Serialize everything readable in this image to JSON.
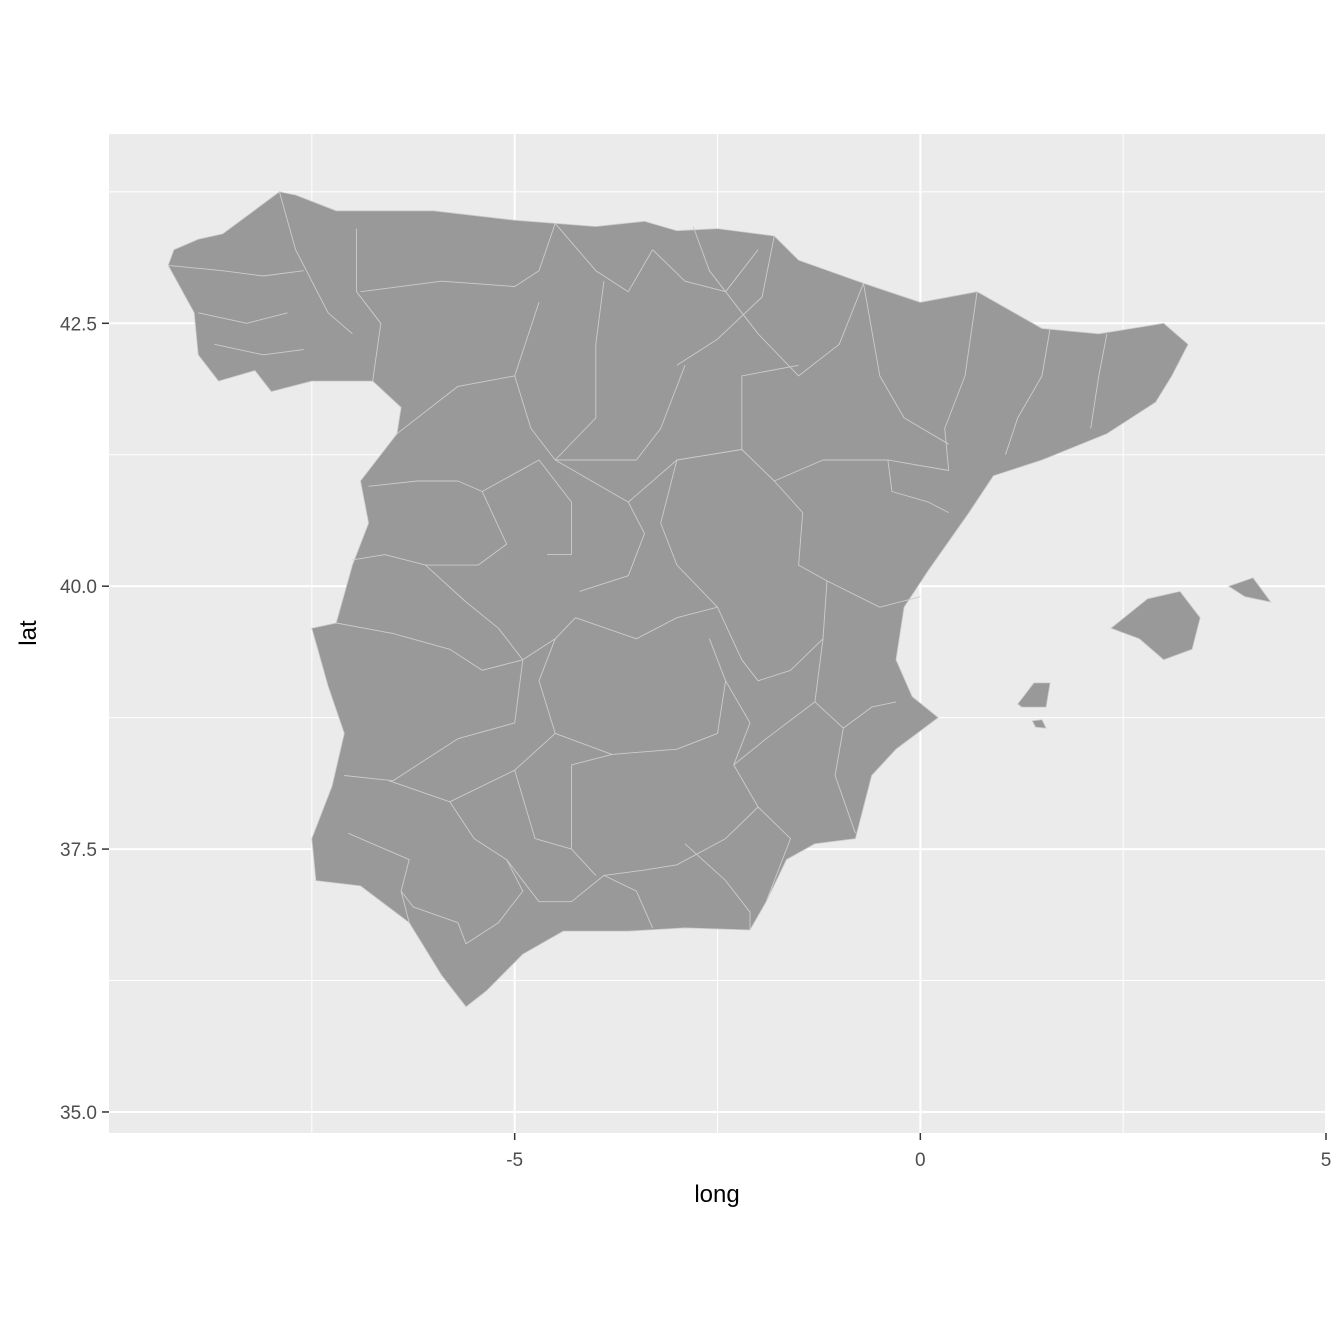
{
  "chart_data": {
    "type": "map",
    "title": "",
    "subject": "Spain provinces",
    "xlabel": "long",
    "ylabel": "lat",
    "xlim": [
      -10,
      5
    ],
    "ylim": [
      34.8,
      44.3
    ],
    "x_ticks": [
      {
        "value": -5,
        "label": "-5"
      },
      {
        "value": 0,
        "label": "0"
      },
      {
        "value": 5,
        "label": "5"
      }
    ],
    "y_ticks": [
      {
        "value": 35.0,
        "label": "35.0"
      },
      {
        "value": 37.5,
        "label": "37.5"
      },
      {
        "value": 40.0,
        "label": "40.0"
      },
      {
        "value": 42.5,
        "label": "42.5"
      }
    ],
    "x_minor_ticks": [
      -7.5,
      -2.5,
      2.5
    ],
    "y_minor_ticks": [
      36.25,
      38.75,
      41.25,
      43.75
    ],
    "colors": {
      "panel_background": "#ebebeb",
      "grid": "#ffffff",
      "region_fill": "#999999",
      "region_border": "#cccccc"
    },
    "mainland": [
      [
        -9.27,
        43.05
      ],
      [
        -9.2,
        43.2
      ],
      [
        -8.9,
        43.3
      ],
      [
        -8.6,
        43.35
      ],
      [
        -8.25,
        43.55
      ],
      [
        -7.9,
        43.75
      ],
      [
        -7.7,
        43.72
      ],
      [
        -7.2,
        43.57
      ],
      [
        -6.0,
        43.57
      ],
      [
        -5.0,
        43.48
      ],
      [
        -4.0,
        43.42
      ],
      [
        -3.4,
        43.47
      ],
      [
        -3.0,
        43.38
      ],
      [
        -2.5,
        43.4
      ],
      [
        -1.8,
        43.33
      ],
      [
        -1.5,
        43.1
      ],
      [
        -0.7,
        42.88
      ],
      [
        0.0,
        42.7
      ],
      [
        0.7,
        42.8
      ],
      [
        1.5,
        42.45
      ],
      [
        2.2,
        42.4
      ],
      [
        3.0,
        42.5
      ],
      [
        3.3,
        42.3
      ],
      [
        3.1,
        42.0
      ],
      [
        2.9,
        41.75
      ],
      [
        2.3,
        41.45
      ],
      [
        1.5,
        41.2
      ],
      [
        0.9,
        41.05
      ],
      [
        0.6,
        40.7
      ],
      [
        0.1,
        40.15
      ],
      [
        -0.2,
        39.8
      ],
      [
        -0.3,
        39.3
      ],
      [
        -0.1,
        38.95
      ],
      [
        0.22,
        38.75
      ],
      [
        -0.3,
        38.45
      ],
      [
        -0.6,
        38.2
      ],
      [
        -0.8,
        37.6
      ],
      [
        -1.3,
        37.55
      ],
      [
        -1.65,
        37.4
      ],
      [
        -1.9,
        37.0
      ],
      [
        -2.1,
        36.73
      ],
      [
        -2.9,
        36.75
      ],
      [
        -3.6,
        36.72
      ],
      [
        -4.4,
        36.72
      ],
      [
        -4.9,
        36.5
      ],
      [
        -5.35,
        36.15
      ],
      [
        -5.6,
        36.0
      ],
      [
        -5.9,
        36.3
      ],
      [
        -6.3,
        36.8
      ],
      [
        -6.9,
        37.15
      ],
      [
        -7.45,
        37.2
      ],
      [
        -7.5,
        37.6
      ],
      [
        -7.25,
        38.1
      ],
      [
        -7.1,
        38.6
      ],
      [
        -7.3,
        39.05
      ],
      [
        -7.5,
        39.6
      ],
      [
        -7.2,
        39.65
      ],
      [
        -7.0,
        40.2
      ],
      [
        -6.8,
        40.6
      ],
      [
        -6.9,
        41.0
      ],
      [
        -6.45,
        41.45
      ],
      [
        -6.4,
        41.7
      ],
      [
        -6.75,
        41.95
      ],
      [
        -7.5,
        41.95
      ],
      [
        -8.0,
        41.85
      ],
      [
        -8.2,
        42.05
      ],
      [
        -8.65,
        41.95
      ],
      [
        -8.9,
        42.2
      ],
      [
        -8.95,
        42.6
      ],
      [
        -9.27,
        43.05
      ]
    ],
    "islands": [
      {
        "name": "Mallorca",
        "points": [
          [
            2.35,
            39.6
          ],
          [
            2.8,
            39.88
          ],
          [
            3.2,
            39.95
          ],
          [
            3.45,
            39.7
          ],
          [
            3.35,
            39.4
          ],
          [
            3.0,
            39.3
          ],
          [
            2.7,
            39.5
          ],
          [
            2.35,
            39.6
          ]
        ]
      },
      {
        "name": "Menorca",
        "points": [
          [
            3.8,
            40.0
          ],
          [
            4.1,
            40.08
          ],
          [
            4.32,
            39.85
          ],
          [
            4.0,
            39.9
          ],
          [
            3.8,
            40.0
          ]
        ]
      },
      {
        "name": "Ibiza",
        "points": [
          [
            1.2,
            38.88
          ],
          [
            1.4,
            39.08
          ],
          [
            1.6,
            39.08
          ],
          [
            1.55,
            38.85
          ],
          [
            1.25,
            38.85
          ],
          [
            1.2,
            38.88
          ]
        ]
      },
      {
        "name": "Formentera",
        "points": [
          [
            1.38,
            38.72
          ],
          [
            1.5,
            38.73
          ],
          [
            1.55,
            38.65
          ],
          [
            1.42,
            38.66
          ],
          [
            1.38,
            38.72
          ]
        ]
      }
    ],
    "borders": [
      [
        [
          -6.75,
          41.95
        ],
        [
          -6.65,
          42.5
        ],
        [
          -6.95,
          42.8
        ],
        [
          -6.95,
          43.4
        ]
      ],
      [
        [
          -7.9,
          43.75
        ],
        [
          -7.7,
          43.2
        ],
        [
          -7.3,
          42.6
        ],
        [
          -7.0,
          42.4
        ]
      ],
      [
        [
          -8.9,
          42.6
        ],
        [
          -8.3,
          42.5
        ],
        [
          -7.8,
          42.6
        ]
      ],
      [
        [
          -9.27,
          43.05
        ],
        [
          -8.6,
          43.0
        ],
        [
          -8.1,
          42.95
        ],
        [
          -7.6,
          43.0
        ]
      ],
      [
        [
          -8.7,
          42.3
        ],
        [
          -8.1,
          42.2
        ],
        [
          -7.6,
          42.25
        ]
      ],
      [
        [
          -4.5,
          43.45
        ],
        [
          -4.7,
          43.0
        ],
        [
          -5.0,
          42.85
        ],
        [
          -5.9,
          42.9
        ],
        [
          -6.9,
          42.8
        ]
      ],
      [
        [
          -4.5,
          43.45
        ],
        [
          -4.0,
          43.0
        ],
        [
          -3.6,
          42.8
        ],
        [
          -3.3,
          43.2
        ]
      ],
      [
        [
          -3.3,
          43.2
        ],
        [
          -2.9,
          42.9
        ],
        [
          -2.4,
          42.8
        ],
        [
          -2.0,
          43.2
        ]
      ],
      [
        [
          -2.8,
          43.42
        ],
        [
          -2.6,
          43.0
        ],
        [
          -2.4,
          42.8
        ]
      ],
      [
        [
          -1.8,
          43.33
        ],
        [
          -1.95,
          42.75
        ],
        [
          -2.5,
          42.35
        ],
        [
          -3.0,
          42.1
        ]
      ],
      [
        [
          -2.4,
          42.8
        ],
        [
          -2.0,
          42.4
        ],
        [
          -1.5,
          42.0
        ],
        [
          -1.0,
          42.3
        ],
        [
          -0.7,
          42.88
        ]
      ],
      [
        [
          -0.7,
          42.88
        ],
        [
          -0.5,
          42.0
        ],
        [
          -0.2,
          41.6
        ],
        [
          0.35,
          41.35
        ]
      ],
      [
        [
          0.7,
          42.8
        ],
        [
          0.55,
          42.0
        ],
        [
          0.3,
          41.5
        ],
        [
          0.35,
          41.1
        ]
      ],
      [
        [
          1.6,
          42.45
        ],
        [
          1.5,
          42.0
        ],
        [
          1.2,
          41.6
        ],
        [
          1.05,
          41.25
        ]
      ],
      [
        [
          2.3,
          42.4
        ],
        [
          2.2,
          42.0
        ],
        [
          2.1,
          41.5
        ]
      ],
      [
        [
          -6.45,
          41.45
        ],
        [
          -5.7,
          41.9
        ],
        [
          -5.0,
          42.0
        ],
        [
          -4.7,
          42.7
        ]
      ],
      [
        [
          -5.0,
          42.0
        ],
        [
          -4.8,
          41.5
        ],
        [
          -4.5,
          41.2
        ],
        [
          -3.5,
          41.2
        ],
        [
          -3.2,
          41.5
        ],
        [
          -2.9,
          42.1
        ]
      ],
      [
        [
          -3.9,
          42.9
        ],
        [
          -4.0,
          42.3
        ],
        [
          -4.0,
          41.6
        ],
        [
          -4.5,
          41.2
        ]
      ],
      [
        [
          -6.8,
          40.95
        ],
        [
          -6.2,
          41.0
        ],
        [
          -5.7,
          41.0
        ],
        [
          -5.4,
          40.9
        ],
        [
          -5.1,
          40.4
        ],
        [
          -5.45,
          40.2
        ],
        [
          -6.1,
          40.2
        ],
        [
          -6.6,
          40.3
        ],
        [
          -7.0,
          40.25
        ]
      ],
      [
        [
          -5.4,
          40.9
        ],
        [
          -4.7,
          41.2
        ],
        [
          -4.3,
          40.8
        ],
        [
          -4.3,
          40.3
        ],
        [
          -4.6,
          40.3
        ]
      ],
      [
        [
          -4.5,
          41.2
        ],
        [
          -3.6,
          40.8
        ],
        [
          -3.4,
          40.5
        ],
        [
          -3.6,
          40.1
        ],
        [
          -4.2,
          39.95
        ]
      ],
      [
        [
          -3.6,
          40.8
        ],
        [
          -3.0,
          41.2
        ],
        [
          -2.2,
          41.3
        ],
        [
          -1.8,
          41.0
        ],
        [
          -1.45,
          40.7
        ]
      ],
      [
        [
          -3.0,
          41.2
        ],
        [
          -3.2,
          40.6
        ],
        [
          -3.0,
          40.2
        ],
        [
          -2.5,
          39.8
        ]
      ],
      [
        [
          -2.2,
          41.3
        ],
        [
          -2.2,
          42.0
        ],
        [
          -1.5,
          42.1
        ]
      ],
      [
        [
          -1.8,
          41.0
        ],
        [
          -1.2,
          41.2
        ],
        [
          -0.4,
          41.2
        ],
        [
          0.35,
          41.1
        ]
      ],
      [
        [
          -1.45,
          40.7
        ],
        [
          -1.5,
          40.2
        ],
        [
          -1.15,
          40.05
        ]
      ],
      [
        [
          -1.15,
          40.05
        ],
        [
          -0.5,
          39.8
        ],
        [
          0.0,
          39.9
        ]
      ],
      [
        [
          -0.4,
          41.2
        ],
        [
          -0.35,
          40.9
        ],
        [
          0.1,
          40.8
        ],
        [
          0.35,
          40.7
        ]
      ],
      [
        [
          -7.2,
          39.65
        ],
        [
          -6.5,
          39.55
        ],
        [
          -5.8,
          39.4
        ],
        [
          -5.4,
          39.2
        ],
        [
          -4.9,
          39.3
        ],
        [
          -4.5,
          39.5
        ],
        [
          -4.25,
          39.7
        ]
      ],
      [
        [
          -6.1,
          40.2
        ],
        [
          -5.6,
          39.85
        ],
        [
          -5.2,
          39.6
        ],
        [
          -4.9,
          39.3
        ]
      ],
      [
        [
          -4.9,
          39.3
        ],
        [
          -5.0,
          38.7
        ],
        [
          -5.7,
          38.55
        ],
        [
          -6.5,
          38.15
        ],
        [
          -7.1,
          38.2
        ]
      ],
      [
        [
          -4.25,
          39.7
        ],
        [
          -3.5,
          39.5
        ],
        [
          -3.0,
          39.7
        ],
        [
          -2.5,
          39.8
        ]
      ],
      [
        [
          -4.5,
          39.5
        ],
        [
          -4.7,
          39.1
        ],
        [
          -4.5,
          38.6
        ],
        [
          -3.8,
          38.4
        ],
        [
          -3.0,
          38.45
        ],
        [
          -2.5,
          38.6
        ],
        [
          -2.4,
          39.1
        ],
        [
          -2.6,
          39.5
        ]
      ],
      [
        [
          -2.5,
          39.8
        ],
        [
          -2.2,
          39.3
        ],
        [
          -2.0,
          39.1
        ],
        [
          -1.6,
          39.2
        ],
        [
          -1.2,
          39.5
        ],
        [
          -1.15,
          40.05
        ]
      ],
      [
        [
          -2.4,
          39.1
        ],
        [
          -2.1,
          38.7
        ],
        [
          -2.3,
          38.3
        ]
      ],
      [
        [
          -1.2,
          39.5
        ],
        [
          -1.3,
          38.9
        ],
        [
          -0.95,
          38.65
        ],
        [
          -0.6,
          38.85
        ],
        [
          -0.3,
          38.9
        ]
      ],
      [
        [
          -1.3,
          38.9
        ],
        [
          -1.9,
          38.55
        ],
        [
          -2.3,
          38.3
        ],
        [
          -2.0,
          37.9
        ],
        [
          -1.6,
          37.6
        ],
        [
          -1.9,
          37.0
        ]
      ],
      [
        [
          -0.95,
          38.65
        ],
        [
          -1.05,
          38.2
        ],
        [
          -0.8,
          37.65
        ]
      ],
      [
        [
          -6.55,
          38.15
        ],
        [
          -5.8,
          37.95
        ],
        [
          -5.5,
          37.6
        ],
        [
          -5.1,
          37.4
        ],
        [
          -4.9,
          37.1
        ],
        [
          -5.2,
          36.8
        ],
        [
          -5.6,
          36.6
        ],
        [
          -5.7,
          36.8
        ],
        [
          -6.25,
          36.95
        ],
        [
          -6.4,
          37.1
        ]
      ],
      [
        [
          -7.05,
          37.65
        ],
        [
          -6.6,
          37.5
        ],
        [
          -6.3,
          37.4
        ],
        [
          -6.4,
          37.1
        ],
        [
          -6.3,
          36.8
        ]
      ],
      [
        [
          -5.1,
          37.4
        ],
        [
          -4.7,
          37.0
        ],
        [
          -4.3,
          37.0
        ],
        [
          -3.9,
          37.25
        ],
        [
          -3.4,
          37.3
        ]
      ],
      [
        [
          -5.8,
          37.95
        ],
        [
          -5.0,
          38.25
        ],
        [
          -4.5,
          38.6
        ]
      ],
      [
        [
          -5.0,
          38.25
        ],
        [
          -4.75,
          37.6
        ],
        [
          -4.3,
          37.5
        ],
        [
          -4.0,
          37.25
        ]
      ],
      [
        [
          -4.3,
          37.5
        ],
        [
          -4.3,
          38.3
        ],
        [
          -3.8,
          38.4
        ]
      ],
      [
        [
          -3.4,
          37.3
        ],
        [
          -3.0,
          37.35
        ],
        [
          -2.4,
          37.6
        ],
        [
          -2.0,
          37.9
        ]
      ],
      [
        [
          -3.9,
          37.25
        ],
        [
          -3.5,
          37.1
        ],
        [
          -3.3,
          36.75
        ]
      ],
      [
        [
          -2.9,
          37.55
        ],
        [
          -2.4,
          37.2
        ],
        [
          -2.1,
          36.9
        ],
        [
          -2.1,
          36.73
        ]
      ]
    ]
  }
}
